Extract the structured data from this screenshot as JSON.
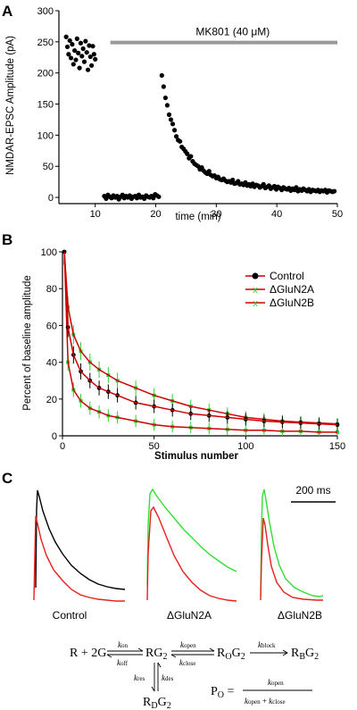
{
  "panels": {
    "a": "A",
    "b": "B",
    "c": "C"
  },
  "chart_data": [
    {
      "type": "scatter",
      "xlabel": "time (min)",
      "ylabel": "NMDAR-EPSC Amplitude (pA)",
      "xlim": [
        4,
        50
      ],
      "ylim": [
        -10,
        300
      ],
      "xticks": [
        10,
        20,
        30,
        40,
        50
      ],
      "yticks": [
        0,
        50,
        100,
        150,
        200,
        250,
        300
      ],
      "annotation": {
        "label": "MK801 (40 μM)",
        "x_start": 12.5,
        "x_end": 51,
        "y": 292,
        "color": "#999999"
      },
      "series": [
        {
          "color": "#000000",
          "x": [
            5.2,
            5.4,
            5.6,
            5.8,
            6.0,
            6.2,
            6.4,
            6.6,
            6.8,
            7.0,
            7.2,
            7.4,
            7.6,
            7.8,
            8.0,
            8.2,
            8.4,
            8.6,
            8.8,
            9.0,
            9.2,
            9.4,
            9.6,
            9.8,
            10.0
          ],
          "y": [
            258,
            242,
            230,
            252,
            224,
            246,
            214,
            236,
            221,
            255,
            232,
            208,
            248,
            227,
            239,
            218,
            251,
            233,
            205,
            244,
            226,
            212,
            243,
            230,
            222
          ]
        },
        {
          "color": "#000000",
          "x": [
            11.5,
            11.8,
            12.1,
            12.4,
            12.7,
            13.0,
            13.3,
            13.6,
            13.9,
            14.2,
            14.5,
            14.8,
            15.1,
            15.4,
            15.7,
            16.0,
            16.3,
            16.6,
            16.9,
            17.2,
            17.5,
            17.8,
            18.1,
            18.4,
            18.7,
            19.0,
            19.3,
            19.6,
            19.9,
            20.2,
            20.5
          ],
          "y": [
            2,
            -2,
            4,
            1,
            -1,
            3,
            0,
            2,
            -3,
            1,
            4,
            -1,
            2,
            0,
            3,
            -2,
            1,
            2,
            -1,
            4,
            0,
            1,
            -2,
            3,
            1,
            0,
            2,
            -1,
            5,
            3,
            1
          ]
        },
        {
          "color": "#000000",
          "x": [
            21.0,
            21.3,
            21.6,
            21.9,
            22.2,
            22.5,
            22.8,
            23.1,
            23.4,
            23.7,
            24.0,
            24.3,
            24.6,
            24.9,
            25.2,
            25.5,
            25.8,
            26.1,
            26.4,
            26.7,
            27.0,
            27.3,
            27.6,
            27.9,
            28.2,
            28.5,
            28.8,
            29.1,
            29.4,
            29.7,
            30.0,
            30.3,
            30.6,
            30.9,
            31.2,
            31.5,
            31.8,
            32.1,
            32.4,
            32.7,
            33.0,
            33.3,
            33.6,
            33.9,
            34.2,
            34.5,
            34.8,
            35.1,
            35.4,
            35.7,
            36.0,
            36.3,
            36.6,
            36.9,
            37.2,
            37.5,
            37.8,
            38.1,
            38.4,
            38.7,
            39.0,
            39.3,
            39.6,
            39.9,
            40.2,
            40.5,
            40.8,
            41.1,
            41.4,
            41.7,
            42.0,
            42.3,
            42.6,
            42.9,
            43.2,
            43.5,
            43.8,
            44.1,
            44.4,
            44.7,
            45.0,
            45.3,
            45.6,
            45.9,
            46.2,
            46.5,
            46.8,
            47.1,
            47.4,
            47.7,
            48.0,
            48.3,
            48.6,
            48.9,
            49.2,
            49.5
          ],
          "y": [
            196,
            178,
            160,
            148,
            133,
            125,
            118,
            108,
            98,
            92,
            90,
            81,
            78,
            74,
            70,
            63,
            66,
            58,
            54,
            52,
            50,
            45,
            48,
            43,
            40,
            38,
            42,
            36,
            34,
            35,
            31,
            33,
            29,
            28,
            30,
            27,
            25,
            26,
            24,
            28,
            22,
            23,
            26,
            21,
            22,
            20,
            24,
            19,
            21,
            18,
            22,
            17,
            20,
            19,
            16,
            18,
            21,
            15,
            17,
            19,
            14,
            16,
            18,
            13,
            17,
            15,
            12,
            16,
            14,
            13,
            15,
            11,
            14,
            12,
            16,
            10,
            13,
            11,
            14,
            12,
            10,
            13,
            9,
            12,
            11,
            10,
            12,
            9,
            11,
            10,
            12,
            8,
            11,
            10,
            9,
            10
          ]
        }
      ]
    },
    {
      "type": "line",
      "xlabel": "Stimulus number",
      "ylabel": "Percent of baseline amplitude",
      "xlim": [
        0,
        150
      ],
      "ylim": [
        0,
        100
      ],
      "xticks": [
        0,
        50,
        100,
        150
      ],
      "yticks": [
        0,
        20,
        40,
        60,
        80,
        100
      ],
      "legend": "top-right",
      "series": [
        {
          "name": "Control",
          "color": "#cc0000",
          "marker_color": "#000000",
          "x": [
            1,
            3,
            6,
            10,
            15,
            20,
            25,
            30,
            40,
            50,
            60,
            70,
            80,
            90,
            100,
            110,
            120,
            130,
            140,
            150
          ],
          "y": [
            100,
            59,
            44,
            35,
            30,
            26,
            24,
            22,
            18,
            16,
            14,
            12,
            11,
            10,
            9,
            8,
            7.5,
            7,
            6.5,
            6
          ]
        },
        {
          "name": "ΔGluN2A",
          "color": "#cc0000",
          "marker_color": "#33cc33",
          "x": [
            1,
            3,
            6,
            10,
            15,
            20,
            25,
            30,
            40,
            50,
            60,
            70,
            80,
            90,
            100,
            110,
            120,
            130,
            140,
            150
          ],
          "y": [
            100,
            70,
            55,
            46,
            40,
            36,
            33,
            30,
            26,
            22,
            19,
            16,
            14,
            12,
            10,
            9,
            8,
            7.5,
            7,
            6.5
          ]
        },
        {
          "name": "ΔGluN2B",
          "color": "#cc0000",
          "marker_color": "#33cc33",
          "x": [
            1,
            3,
            6,
            10,
            15,
            20,
            25,
            30,
            40,
            50,
            60,
            70,
            80,
            90,
            100,
            110,
            120,
            130,
            140,
            150
          ],
          "y": [
            100,
            40,
            25,
            19,
            15,
            13,
            11,
            10,
            8,
            6,
            5,
            4.5,
            4,
            3.5,
            3,
            3,
            2.5,
            2.5,
            2,
            2
          ]
        }
      ]
    }
  ],
  "traces": {
    "scalebar": "200 ms",
    "labels": [
      "Control",
      "ΔGluN2A",
      "ΔGluN2B"
    ]
  },
  "scheme": {
    "colors": {
      "black": "#000000",
      "red": "#e8201c",
      "green": "#33dd33"
    }
  }
}
